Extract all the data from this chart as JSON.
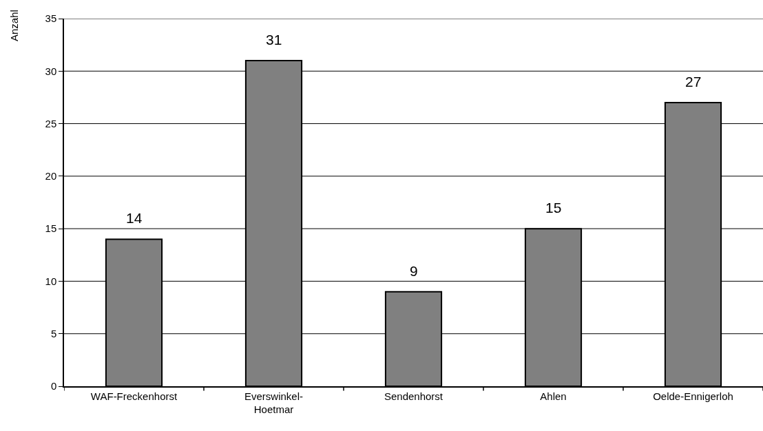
{
  "chart_data": {
    "type": "bar",
    "ylabel": "Anzahl",
    "categories": [
      "WAF-Freckenhorst",
      "Everswinkel-\nHoetmar",
      "Sendenhorst",
      "Ahlen",
      "Oelde-Ennigerloh"
    ],
    "values": [
      14,
      31,
      9,
      15,
      27
    ],
    "color": "#808080",
    "ylim": [
      0,
      35
    ],
    "yticks": [
      0,
      5,
      10,
      15,
      20,
      25,
      30,
      35
    ],
    "grid": "y",
    "data_labels": true
  }
}
